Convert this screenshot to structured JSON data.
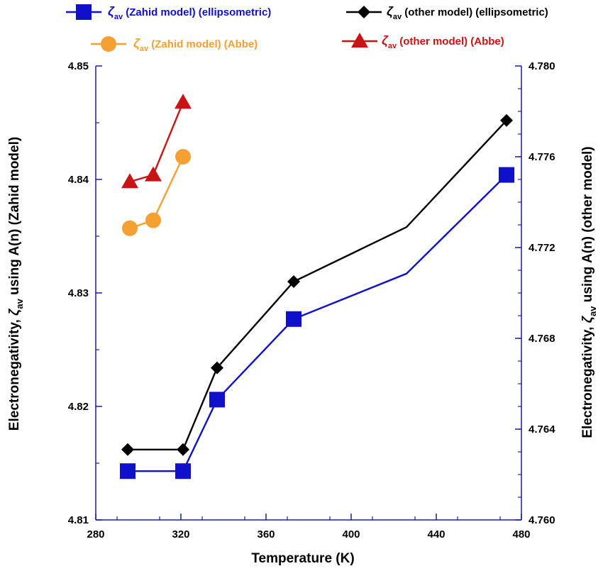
{
  "chart_data": {
    "type": "line",
    "xlabel": "Temperature (K)",
    "ylabel_left": {
      "pre": "Electronegativity, ",
      "sym": "ζ",
      "sub": "av",
      "post": " using A(n) (Zahid model)"
    },
    "ylabel_right": {
      "pre": "Electronegativity, ",
      "sym": "ζ",
      "sub": "av",
      "post": " using A(n) (other model)"
    },
    "xlim": [
      280,
      480
    ],
    "ylim_left": [
      4.81,
      4.85
    ],
    "ylim_right": [
      4.76,
      4.78
    ],
    "x_ticks": [
      "280",
      "320",
      "360",
      "400",
      "440",
      "480"
    ],
    "y_left_ticks": [
      "4.81",
      "4.82",
      "4.83",
      "4.84",
      "4.85"
    ],
    "y_right_ticks": [
      "4.760",
      "4.764",
      "4.768",
      "4.772",
      "4.776",
      "4.780"
    ],
    "colors": {
      "axis": "#1a1aa6",
      "text": "#000000"
    },
    "series": [
      {
        "sym": "ζ",
        "sub": "av",
        "label": " (Zahid model) (ellipsometric)",
        "color": "#1010c8",
        "marker": "square",
        "axis": "left",
        "x": [
          295,
          321,
          337,
          373,
          426,
          473
        ],
        "y": [
          4.8143,
          4.8143,
          4.8206,
          4.8277,
          4.8317,
          4.8404
        ],
        "marker_mask": [
          true,
          true,
          true,
          true,
          false,
          true
        ]
      },
      {
        "sym": "ζ",
        "sub": "av",
        "label": " (other model) (ellipsometric)",
        "color": "#000000",
        "marker": "diamond",
        "axis": "right",
        "x": [
          295,
          321,
          337,
          373,
          426,
          473
        ],
        "y": [
          4.7631,
          4.7631,
          4.7667,
          4.7705,
          4.7729,
          4.7776
        ],
        "marker_mask": [
          true,
          true,
          true,
          true,
          false,
          true
        ]
      },
      {
        "sym": "ζ",
        "sub": "av",
        "label": " (Zahid model) (Abbe)",
        "color": "#f5a033",
        "marker": "circle",
        "axis": "left",
        "x": [
          296,
          307,
          321
        ],
        "y": [
          4.8357,
          4.8364,
          4.842
        ],
        "marker_mask": [
          true,
          true,
          true
        ]
      },
      {
        "sym": "ζ",
        "sub": "av",
        "label": " (other model) (Abbe)",
        "color": "#c81414",
        "marker": "triangle",
        "axis": "right",
        "x": [
          296,
          307,
          321
        ],
        "y": [
          4.7749,
          4.7752,
          4.7784
        ],
        "marker_mask": [
          true,
          true,
          true
        ]
      }
    ]
  }
}
